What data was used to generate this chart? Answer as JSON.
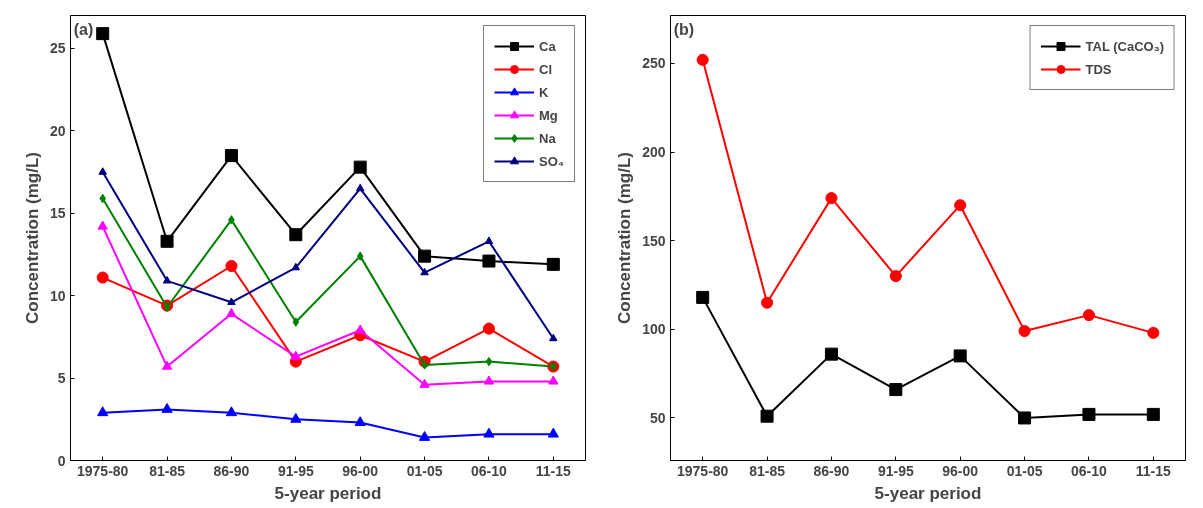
{
  "chart_data": [
    {
      "type": "line",
      "title": "(a)",
      "xlabel": "5-year period",
      "ylabel": "Concentration (mg/L)",
      "categories": [
        "1975-80",
        "81-85",
        "86-90",
        "91-95",
        "96-00",
        "01-05",
        "06-10",
        "11-15"
      ],
      "ylim": [
        0,
        27
      ],
      "yticks": [
        0,
        5,
        10,
        15,
        20,
        25
      ],
      "grid": false,
      "legend": "top right",
      "series": [
        {
          "name": "Ca",
          "color": "#000000",
          "marker": "square",
          "values": [
            25.9,
            13.3,
            18.5,
            13.7,
            17.8,
            12.4,
            12.1,
            11.9
          ]
        },
        {
          "name": "Cl",
          "color": "#ff0000",
          "marker": "circle",
          "values": [
            11.1,
            9.4,
            11.8,
            6.0,
            7.6,
            6.0,
            8.0,
            5.7
          ]
        },
        {
          "name": "K",
          "color": "#0000ff",
          "marker": "triangle",
          "values": [
            2.9,
            3.1,
            2.9,
            2.5,
            2.3,
            1.4,
            1.6,
            1.6
          ]
        },
        {
          "name": "Mg",
          "color": "#ff00ff",
          "marker": "triangle",
          "values": [
            14.2,
            5.7,
            8.9,
            6.3,
            7.9,
            4.6,
            4.8,
            4.8
          ]
        },
        {
          "name": "Na",
          "color": "#008000",
          "marker": "diamond",
          "values": [
            15.9,
            9.3,
            14.6,
            8.4,
            12.4,
            5.8,
            6.0,
            5.7
          ]
        },
        {
          "name": "SO₄",
          "color": "#000080",
          "marker": "triangle",
          "values": [
            17.5,
            10.9,
            9.6,
            11.7,
            16.5,
            11.4,
            13.3,
            7.4
          ]
        }
      ]
    },
    {
      "type": "line",
      "title": "(b)",
      "xlabel": "5-year period",
      "ylabel": "Concentration (mg/L)",
      "categories": [
        "1975-80",
        "81-85",
        "86-90",
        "91-95",
        "96-00",
        "01-05",
        "06-10",
        "11-15"
      ],
      "ylim": [
        26,
        277
      ],
      "yticks": [
        50,
        100,
        150,
        200,
        250
      ],
      "grid": false,
      "legend": "top right",
      "series": [
        {
          "name": "TAL (CaCO₃)",
          "color": "#000000",
          "marker": "square",
          "values": [
            118,
            51,
            86,
            66,
            85,
            50,
            52,
            52
          ]
        },
        {
          "name": "TDS",
          "color": "#ff0000",
          "marker": "circle",
          "values": [
            252,
            115,
            174,
            130,
            170,
            99,
            108,
            98
          ]
        }
      ]
    }
  ]
}
